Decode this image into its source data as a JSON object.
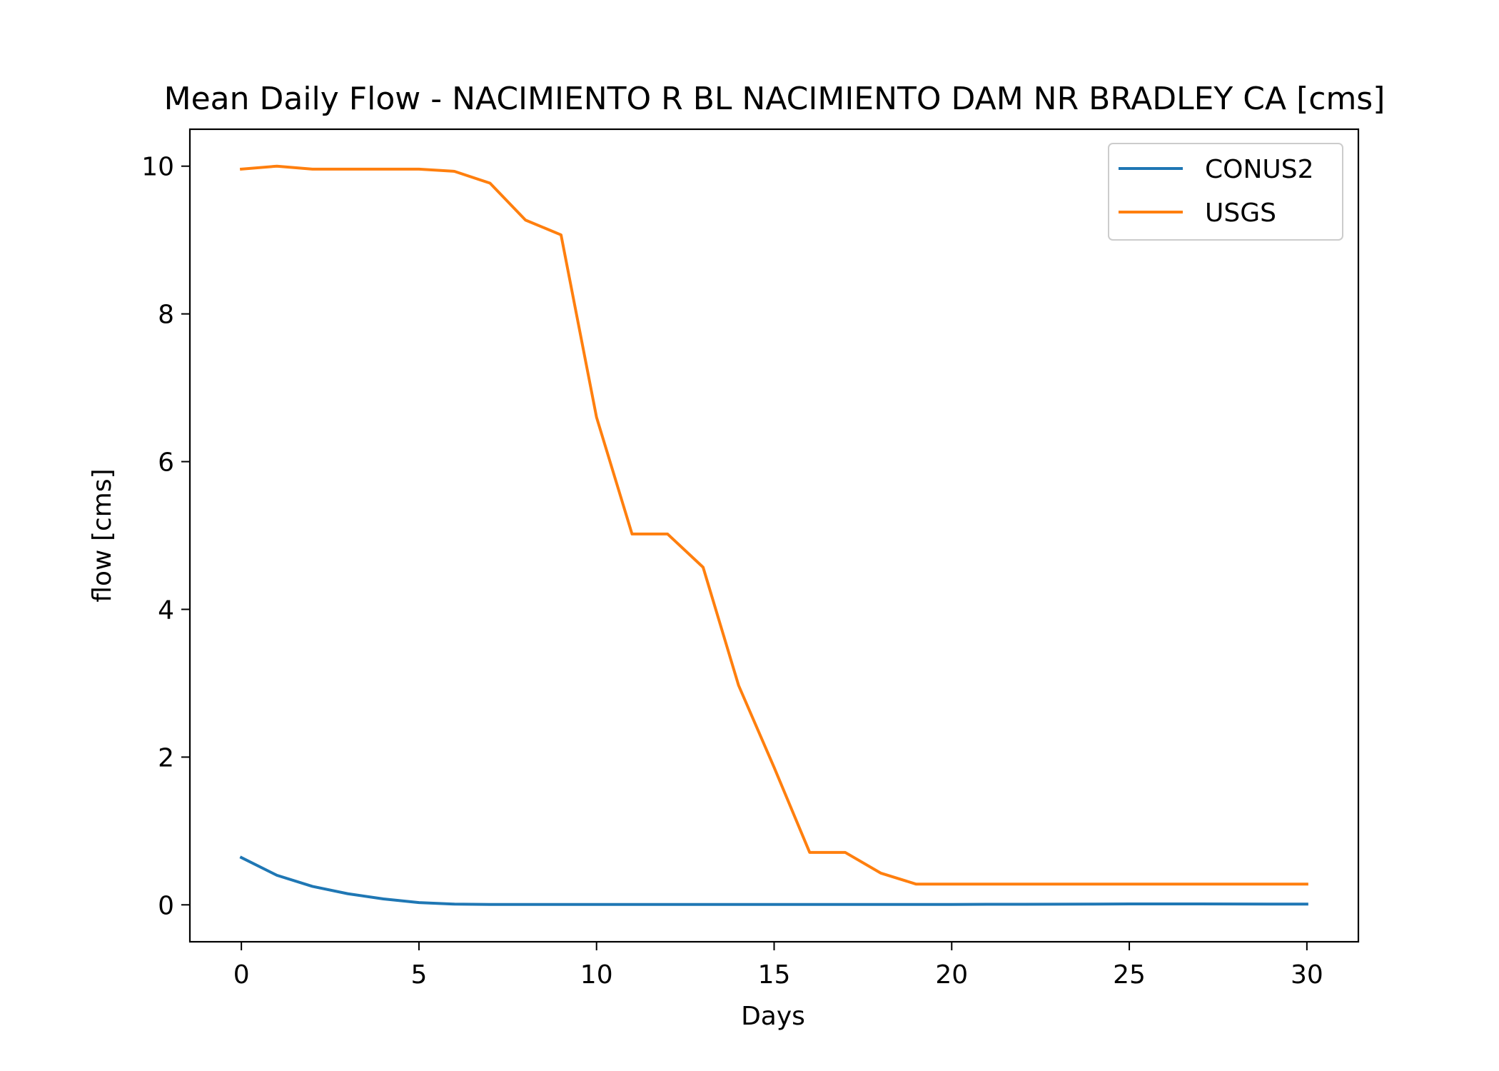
{
  "chart_data": {
    "type": "line",
    "title": "Mean Daily Flow - NACIMIENTO R BL NACIMIENTO DAM NR BRADLEY CA [cms]",
    "xlabel": "Days",
    "ylabel": "flow [cms]",
    "xlim": [
      -1.45,
      31.45
    ],
    "ylim": [
      -0.5,
      10.5
    ],
    "xticks": [
      0,
      5,
      10,
      15,
      20,
      25,
      30
    ],
    "xtick_labels": [
      "0",
      "5",
      "10",
      "15",
      "20",
      "25",
      "30"
    ],
    "yticks": [
      0,
      2,
      4,
      6,
      8,
      10
    ],
    "ytick_labels": [
      "0",
      "2",
      "4",
      "6",
      "8",
      "10"
    ],
    "grid": false,
    "legend_position": "top-right",
    "x": [
      0,
      1,
      2,
      3,
      4,
      5,
      6,
      7,
      8,
      9,
      10,
      11,
      12,
      13,
      14,
      15,
      16,
      17,
      18,
      19,
      20,
      21,
      22,
      23,
      24,
      25,
      26,
      27,
      28,
      29,
      30
    ],
    "series": [
      {
        "name": "CONUS2",
        "color": "#1f77b4",
        "values": [
          0.64,
          0.4,
          0.25,
          0.15,
          0.08,
          0.03,
          0.01,
          0.005,
          0.005,
          0.005,
          0.005,
          0.005,
          0.005,
          0.005,
          0.005,
          0.005,
          0.005,
          0.005,
          0.005,
          0.005,
          0.005,
          0.007,
          0.008,
          0.009,
          0.01,
          0.012,
          0.012,
          0.012,
          0.011,
          0.01,
          0.01
        ]
      },
      {
        "name": "USGS",
        "color": "#ff7f0e",
        "values": [
          9.96,
          10.0,
          9.96,
          9.96,
          9.96,
          9.96,
          9.93,
          9.77,
          9.27,
          9.07,
          6.6,
          5.02,
          5.02,
          4.57,
          2.97,
          1.86,
          0.71,
          0.71,
          0.43,
          0.28,
          0.28,
          0.28,
          0.28,
          0.28,
          0.28,
          0.28,
          0.28,
          0.28,
          0.28,
          0.28,
          0.28
        ]
      }
    ]
  }
}
